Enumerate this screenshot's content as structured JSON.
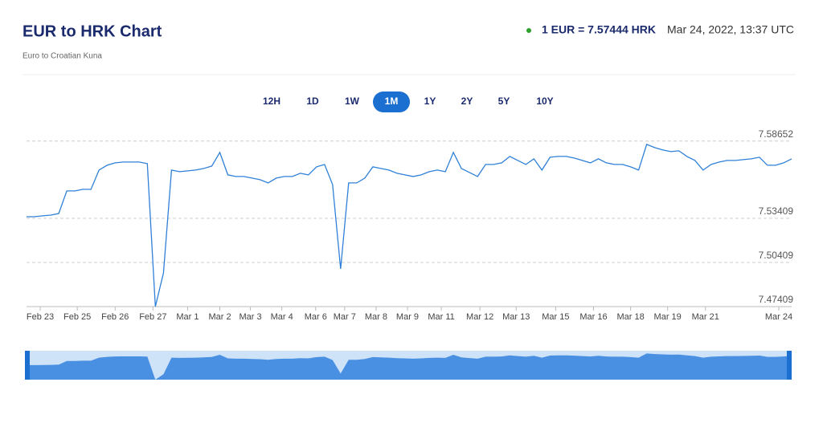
{
  "header": {
    "title": "EUR to HRK Chart",
    "subtitle": "Euro to Croatian Kuna",
    "rate": "1 EUR = 7.57444 HRK",
    "timestamp": "Mar 24, 2022, 13:37 UTC"
  },
  "ranges": {
    "buttons": [
      "12H",
      "1D",
      "1W",
      "1M",
      "1Y",
      "2Y",
      "5Y",
      "10Y"
    ],
    "active": "1M"
  },
  "chart_data": {
    "type": "line",
    "x": [
      0,
      1,
      2,
      3,
      4,
      5,
      6,
      7,
      8,
      9,
      10,
      11,
      12,
      13,
      14,
      15,
      16,
      17,
      18,
      19,
      20,
      21,
      22,
      23,
      24,
      25,
      26,
      27,
      28,
      29,
      30,
      31,
      32,
      33,
      34,
      35,
      36,
      37,
      38,
      39,
      40,
      41,
      42,
      43,
      44,
      45,
      46,
      47,
      48,
      49,
      50,
      51,
      52,
      53,
      54,
      55,
      56,
      57,
      58,
      59,
      60,
      61,
      62,
      63,
      64,
      65,
      66,
      67,
      68,
      69,
      70,
      71,
      72,
      73,
      74,
      75,
      76,
      77,
      78,
      79,
      80,
      81,
      82,
      83,
      84,
      85,
      86,
      87,
      88,
      89,
      90,
      91,
      92,
      93,
      94,
      95
    ],
    "series": [
      {
        "name": "EUR/HRK",
        "color": "#2f80d8",
        "values": [
          7.53518,
          7.53518,
          7.53573,
          7.53627,
          7.53736,
          7.55264,
          7.55264,
          7.55373,
          7.55373,
          7.56682,
          7.57009,
          7.57173,
          7.57227,
          7.57227,
          7.57227,
          7.57118,
          7.47409,
          7.497,
          7.56682,
          7.56573,
          7.56627,
          7.56682,
          7.56791,
          7.56954,
          7.57882,
          7.56354,
          7.56245,
          7.56245,
          7.56136,
          7.56027,
          7.55809,
          7.56136,
          7.56245,
          7.56245,
          7.56464,
          7.56354,
          7.569,
          7.57064,
          7.557,
          7.49973,
          7.55809,
          7.55809,
          7.56136,
          7.569,
          7.56791,
          7.56682,
          7.56464,
          7.56354,
          7.56245,
          7.56354,
          7.56573,
          7.56682,
          7.56573,
          7.57882,
          7.56791,
          7.56518,
          7.56245,
          7.57064,
          7.57064,
          7.57173,
          7.57609,
          7.57336,
          7.57064,
          7.57445,
          7.56682,
          7.57554,
          7.57609,
          7.57609,
          7.575,
          7.57336,
          7.57173,
          7.57445,
          7.57173,
          7.57064,
          7.57064,
          7.569,
          7.56682,
          7.58427,
          7.58209,
          7.58045,
          7.57936,
          7.57991,
          7.57609,
          7.57336,
          7.56682,
          7.57064,
          7.57227,
          7.57336,
          7.57336,
          7.57391,
          7.57445,
          7.57554,
          7.57009,
          7.57009,
          7.57173,
          7.57445
        ]
      }
    ],
    "xlim": [
      0,
      95
    ],
    "xticks": [
      {
        "value": 1.7,
        "label": "Feb 23"
      },
      {
        "value": 6.3,
        "label": "Feb 25"
      },
      {
        "value": 11,
        "label": "Feb 26"
      },
      {
        "value": 15.7,
        "label": "Feb 27"
      },
      {
        "value": 20,
        "label": "Mar 1"
      },
      {
        "value": 24,
        "label": "Mar 2"
      },
      {
        "value": 27.8,
        "label": "Mar 3"
      },
      {
        "value": 31.7,
        "label": "Mar 4"
      },
      {
        "value": 35.9,
        "label": "Mar 6"
      },
      {
        "value": 39.5,
        "label": "Mar 7"
      },
      {
        "value": 43.4,
        "label": "Mar 8"
      },
      {
        "value": 47.3,
        "label": "Mar 9"
      },
      {
        "value": 51.5,
        "label": "Mar 11"
      },
      {
        "value": 56.3,
        "label": "Mar 12"
      },
      {
        "value": 60.8,
        "label": "Mar 13"
      },
      {
        "value": 65.7,
        "label": "Mar 15"
      },
      {
        "value": 70.4,
        "label": "Mar 16"
      },
      {
        "value": 75,
        "label": "Mar 18"
      },
      {
        "value": 79.6,
        "label": "Mar 19"
      },
      {
        "value": 84.3,
        "label": "Mar 21"
      },
      {
        "value": 93.4,
        "label": "Mar 24"
      }
    ],
    "ylim": [
      7.47409,
      7.5924
    ],
    "yticks": [
      7.47409,
      7.50409,
      7.53409,
      7.58652
    ],
    "grid": true
  }
}
